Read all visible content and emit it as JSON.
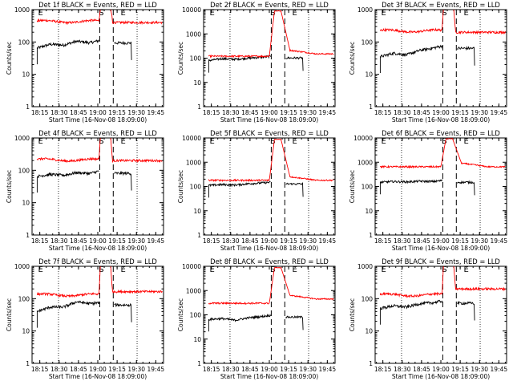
{
  "chart_data": {
    "type": "line",
    "yscale": "log",
    "ylim": [
      1,
      1000
    ],
    "ylabel": "Counts/sec",
    "xlabel": "Start Time (16-Nov-08 18:09:00)",
    "x_ticks": [
      "18:15",
      "18:30",
      "18:45",
      "19:00",
      "19:15",
      "19:30",
      "19:45"
    ],
    "x_tick_minutes": [
      6,
      21,
      36,
      51,
      66,
      81,
      96
    ],
    "x_range_minutes": [
      0,
      102
    ],
    "y_ticks": [
      "1",
      "10",
      "100",
      "1000"
    ],
    "y_tick_values": [
      1,
      10,
      100,
      1000
    ],
    "series_colors": {
      "events": "#000000",
      "lld": "#ff0000"
    },
    "markers": {
      "E_text": "E",
      "S_text": "S",
      "dotted_minutes": [
        20.5,
        81.5
      ],
      "dashed_minutes": [
        52.5,
        63.0
      ],
      "E1_minute": 6.5,
      "S_minute": 53,
      "E2_minute": 70
    },
    "panels": [
      {
        "title": "Det 1f BLACK = Events, RED = LLD",
        "ylim": [
          1,
          1000
        ],
        "y_tick_labels": [
          "1",
          "10",
          "100",
          "1000"
        ],
        "black": {
          "start": 4,
          "points": [
            [
              0,
              65
            ],
            [
              10,
              85
            ],
            [
              20,
              80
            ],
            [
              30,
              105
            ],
            [
              40,
              95
            ],
            [
              47,
              110
            ]
          ]
        },
        "red_mode": "flat",
        "red_flat": {
          "left": 430,
          "right": 400
        }
      },
      {
        "title": "Det 2f BLACK = Events, RED = LLD",
        "ylim": [
          1,
          10000
        ],
        "y_tick_labels": [
          "1",
          "10",
          "100",
          "1000",
          "10000"
        ],
        "black": {
          "start": 4,
          "points": [
            [
              0,
              80
            ],
            [
              10,
              95
            ],
            [
              20,
              90
            ],
            [
              30,
              100
            ],
            [
              40,
              110
            ],
            [
              47,
              120
            ]
          ]
        },
        "red_mode": "flare",
        "red_flare": {
          "base": 120,
          "peak": 9000,
          "tail": 150
        }
      },
      {
        "title": "Det 3f BLACK = Events, RED = LLD",
        "ylim": [
          1,
          1000
        ],
        "y_tick_labels": [
          "1",
          "10",
          "100",
          "1000"
        ],
        "black": {
          "start": 4,
          "points": [
            [
              0,
              35
            ],
            [
              10,
              45
            ],
            [
              20,
              40
            ],
            [
              30,
              55
            ],
            [
              40,
              65
            ],
            [
              47,
              75
            ]
          ]
        },
        "red_mode": "flat",
        "red_flat": {
          "left": 220,
          "right": 200
        }
      },
      {
        "title": "Det 4f BLACK = Events, RED = LLD",
        "ylim": [
          1,
          1000
        ],
        "y_tick_labels": [
          "1",
          "10",
          "100",
          "1000"
        ],
        "black": {
          "start": 4,
          "points": [
            [
              0,
              65
            ],
            [
              10,
              75
            ],
            [
              20,
              70
            ],
            [
              30,
              85
            ],
            [
              40,
              80
            ],
            [
              47,
              95
            ]
          ]
        },
        "red_mode": "flat",
        "red_flat": {
          "left": 210,
          "right": 200
        }
      },
      {
        "title": "Det 5f BLACK = Events, RED = LLD",
        "ylim": [
          1,
          10000
        ],
        "y_tick_labels": [
          "1",
          "10",
          "100",
          "1000",
          "10000"
        ],
        "black": {
          "start": 4,
          "points": [
            [
              0,
              110
            ],
            [
              10,
              120
            ],
            [
              20,
              115
            ],
            [
              30,
              130
            ],
            [
              40,
              140
            ],
            [
              47,
              150
            ]
          ]
        },
        "red_mode": "flare",
        "red_flare": {
          "base": 180,
          "peak": 9000,
          "tail": 180
        }
      },
      {
        "title": "Det 6f BLACK = Events, RED = LLD",
        "ylim": [
          1,
          10000
        ],
        "y_tick_labels": [
          "1",
          "10",
          "100",
          "1000",
          "10000"
        ],
        "black": {
          "start": 4,
          "points": [
            [
              0,
              150
            ],
            [
              10,
              160
            ],
            [
              20,
              155
            ],
            [
              30,
              165
            ],
            [
              40,
              160
            ],
            [
              47,
              175
            ]
          ]
        },
        "red_mode": "flare",
        "red_flare": {
          "base": 650,
          "peak": 9500,
          "tail": 650
        }
      },
      {
        "title": "Det 7f BLACK = Events, RED = LLD",
        "ylim": [
          1,
          1000
        ],
        "y_tick_labels": [
          "1",
          "10",
          "100",
          "1000"
        ],
        "black": {
          "start": 4,
          "points": [
            [
              0,
              40
            ],
            [
              10,
              55
            ],
            [
              20,
              55
            ],
            [
              30,
              80
            ],
            [
              40,
              70
            ],
            [
              47,
              75
            ]
          ]
        },
        "red_mode": "flat",
        "red_flat": {
          "left": 130,
          "right": 165
        }
      },
      {
        "title": "Det 8f BLACK = Events, RED = LLD",
        "ylim": [
          1,
          10000
        ],
        "y_tick_labels": [
          "1",
          "10",
          "100",
          "1000",
          "10000"
        ],
        "black": {
          "start": 4,
          "points": [
            [
              0,
              65
            ],
            [
              10,
              70
            ],
            [
              20,
              60
            ],
            [
              30,
              75
            ],
            [
              40,
              85
            ],
            [
              47,
              95
            ]
          ]
        },
        "red_mode": "flare",
        "red_flare": {
          "base": 300,
          "peak": 9000,
          "tail": 450
        }
      },
      {
        "title": "Det 9f BLACK = Events, RED = LLD",
        "ylim": [
          1,
          1000
        ],
        "y_tick_labels": [
          "1",
          "10",
          "100",
          "1000"
        ],
        "black": {
          "start": 4,
          "points": [
            [
              0,
              50
            ],
            [
              10,
              60
            ],
            [
              20,
              55
            ],
            [
              30,
              70
            ],
            [
              40,
              75
            ],
            [
              47,
              85
            ]
          ]
        },
        "red_mode": "flat",
        "red_flat": {
          "left": 130,
          "right": 200
        }
      }
    ]
  }
}
